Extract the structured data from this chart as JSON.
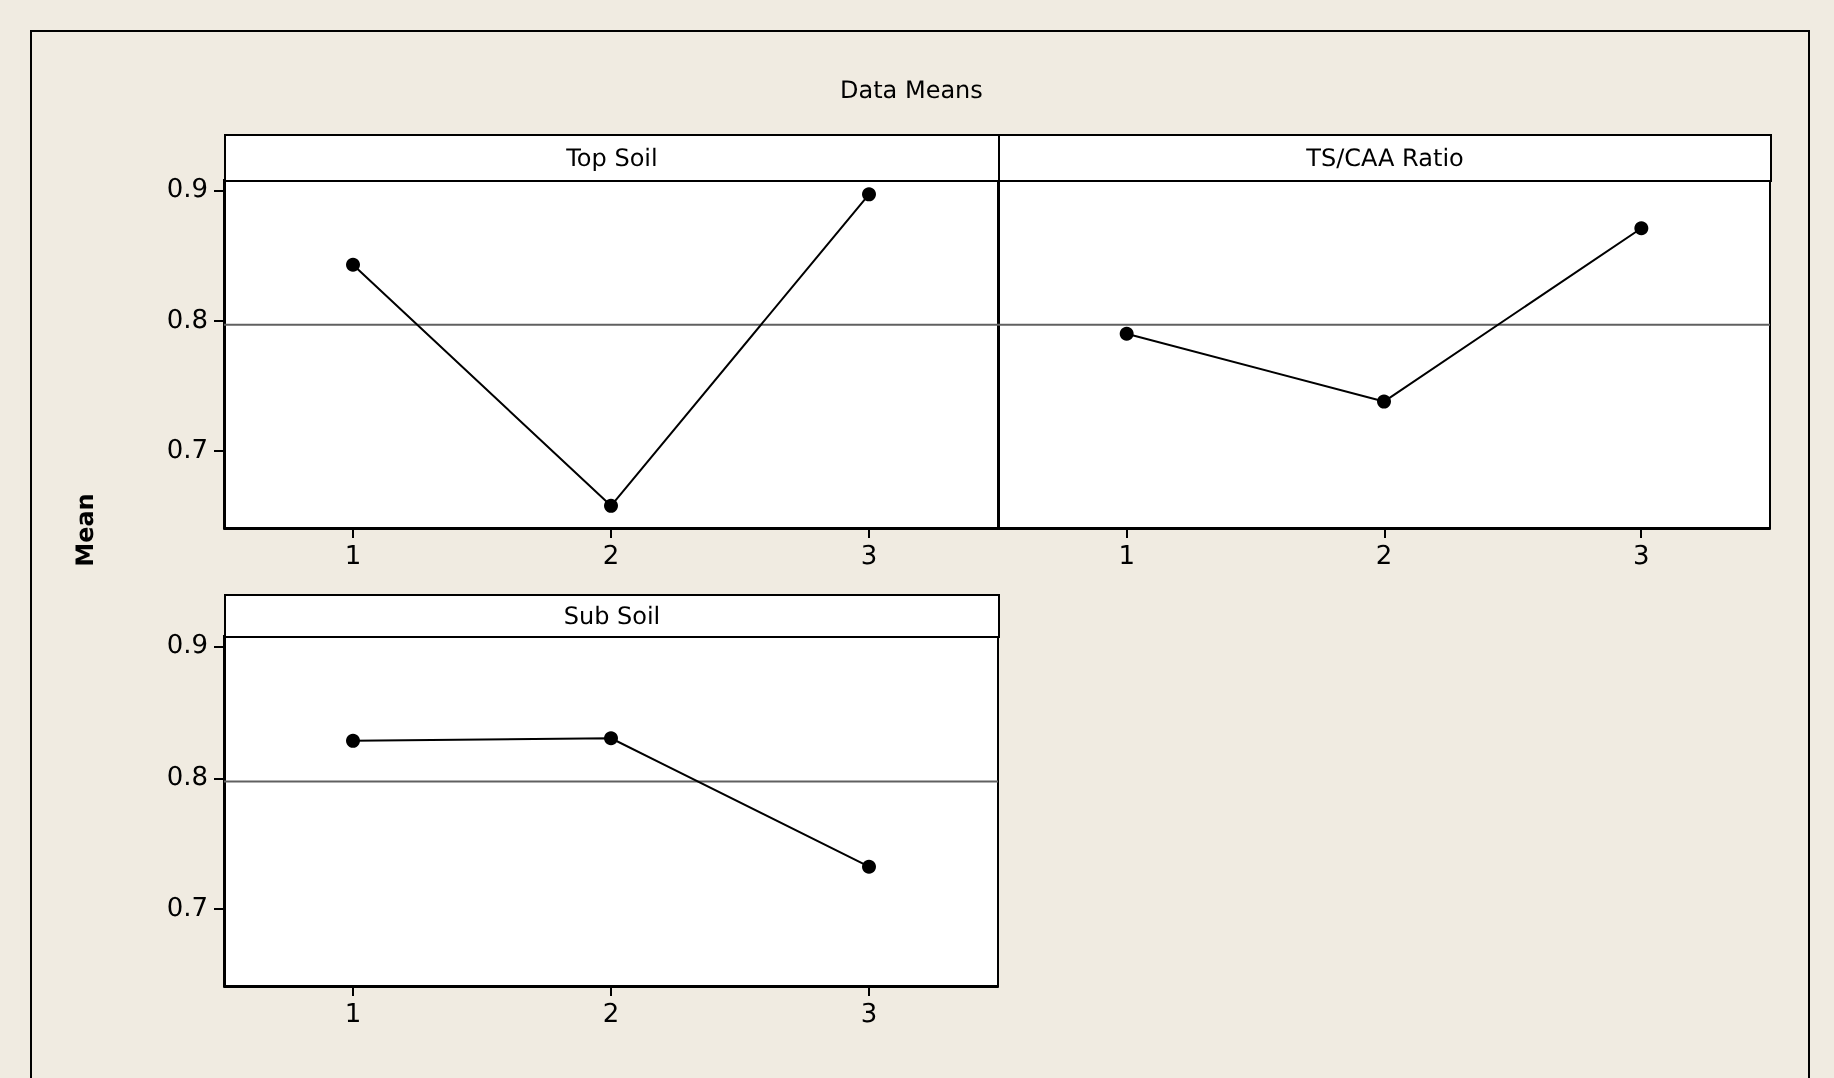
{
  "chart_data": [
    {
      "type": "line",
      "title": "Top Soil",
      "annotations": [
        "Data Means"
      ],
      "ylabel": "Mean",
      "x": [
        1,
        2,
        3
      ],
      "series": [
        {
          "color": "#000000",
          "values": [
            0.843,
            0.658,
            0.897
          ]
        }
      ],
      "xlim": [
        0.5,
        3.5
      ],
      "xticks": [
        1,
        2,
        3
      ],
      "ylim": [
        0.641,
        0.908
      ],
      "yticks": [
        0.7,
        0.8,
        0.9
      ],
      "ref_lines": [
        {
          "axis": "y",
          "value": 0.797,
          "color": "#606060"
        }
      ],
      "marker": "circle",
      "line_style": "solid",
      "grid": false
    },
    {
      "type": "line",
      "title": "TS/CAA Ratio",
      "x": [
        1,
        2,
        3
      ],
      "series": [
        {
          "color": "#000000",
          "values": [
            0.79,
            0.738,
            0.871
          ]
        }
      ],
      "xlim": [
        0.5,
        3.5
      ],
      "xticks": [
        1,
        2,
        3
      ],
      "ylim": [
        0.641,
        0.908
      ],
      "yticks": [
        0.7,
        0.8,
        0.9
      ],
      "tick_labels": "x",
      "ref_lines": [
        {
          "axis": "y",
          "value": 0.797,
          "color": "#606060"
        }
      ],
      "marker": "circle",
      "line_style": "solid",
      "grid": false
    },
    {
      "type": "line",
      "title": "Sub Soil",
      "x": [
        1,
        2,
        3
      ],
      "series": [
        {
          "color": "#000000",
          "values": [
            0.828,
            0.83,
            0.732
          ]
        }
      ],
      "xlim": [
        0.5,
        3.5
      ],
      "xticks": [
        1,
        2,
        3
      ],
      "ylim": [
        0.641,
        0.908
      ],
      "yticks": [
        0.7,
        0.8,
        0.9
      ],
      "ref_lines": [
        {
          "axis": "y",
          "value": 0.797,
          "color": "#606060"
        }
      ],
      "marker": "circle",
      "line_style": "solid",
      "grid": false
    }
  ]
}
